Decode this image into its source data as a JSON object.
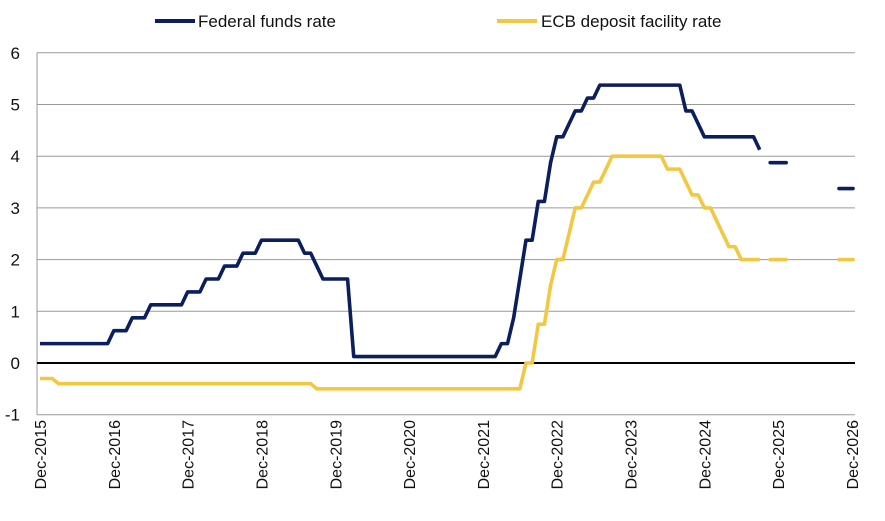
{
  "chart_data": {
    "type": "line",
    "title": "",
    "xlabel": "",
    "ylabel": "",
    "ylim": [
      -1,
      6
    ],
    "yticks": [
      "6",
      "5",
      "4",
      "3",
      "2",
      "1",
      "0",
      "-1"
    ],
    "xticks": [
      "Dec-2015",
      "Dec-2016",
      "Dec-2017",
      "Dec-2018",
      "Dec-2019",
      "Dec-2020",
      "Dec-2021",
      "Dec-2022",
      "Dec-2023",
      "Dec-2024",
      "Dec-2025",
      "Dec-2026"
    ],
    "grid": true,
    "legend_position": "top",
    "step_changes_note": "",
    "series": [
      {
        "name": "Federal funds rate",
        "color": "#0b1f5e",
        "changes": [
          [
            "2015-12",
            0.375
          ],
          [
            "2016-12",
            0.625
          ],
          [
            "2017-03",
            0.875
          ],
          [
            "2017-06",
            1.125
          ],
          [
            "2017-12",
            1.375
          ],
          [
            "2018-03",
            1.625
          ],
          [
            "2018-06",
            1.875
          ],
          [
            "2018-09",
            2.125
          ],
          [
            "2018-12",
            2.375
          ],
          [
            "2019-07",
            2.125
          ],
          [
            "2019-09",
            1.875
          ],
          [
            "2019-10",
            1.625
          ],
          [
            "2020-03",
            0.125
          ],
          [
            "2022-03",
            0.375
          ],
          [
            "2022-05",
            0.875
          ],
          [
            "2022-06",
            1.625
          ],
          [
            "2022-07",
            2.375
          ],
          [
            "2022-09",
            3.125
          ],
          [
            "2022-11",
            3.875
          ],
          [
            "2022-12",
            4.375
          ],
          [
            "2023-02",
            4.625
          ],
          [
            "2023-03",
            4.875
          ],
          [
            "2023-05",
            5.125
          ],
          [
            "2023-07",
            5.375
          ],
          [
            "2024-09",
            4.875
          ],
          [
            "2024-11",
            4.625
          ],
          [
            "2024-12",
            4.375
          ],
          [
            "2025-09",
            4.125
          ]
        ],
        "projections": [
          [
            "2025-12",
            3.875
          ],
          [
            "2026-12",
            3.375
          ]
        ]
      },
      {
        "name": "ECB deposit facility rate",
        "color": "#f2c842",
        "changes": [
          [
            "2015-12",
            -0.3
          ],
          [
            "2016-03",
            -0.4
          ],
          [
            "2019-09",
            -0.5
          ],
          [
            "2022-07",
            0.0
          ],
          [
            "2022-09",
            0.75
          ],
          [
            "2022-11",
            1.5
          ],
          [
            "2022-12",
            2.0
          ],
          [
            "2023-02",
            2.5
          ],
          [
            "2023-03",
            3.0
          ],
          [
            "2023-05",
            3.25
          ],
          [
            "2023-06",
            3.5
          ],
          [
            "2023-08",
            3.75
          ],
          [
            "2023-09",
            4.0
          ],
          [
            "2024-06",
            3.75
          ],
          [
            "2024-09",
            3.5
          ],
          [
            "2024-10",
            3.25
          ],
          [
            "2024-12",
            3.0
          ],
          [
            "2025-02",
            2.75
          ],
          [
            "2025-03",
            2.5
          ],
          [
            "2025-04",
            2.25
          ],
          [
            "2025-06",
            2.0
          ],
          [
            "2025-09",
            2.0
          ]
        ],
        "projections": [
          [
            "2025-12",
            2.0
          ],
          [
            "2026-12",
            2.0
          ]
        ]
      }
    ]
  }
}
